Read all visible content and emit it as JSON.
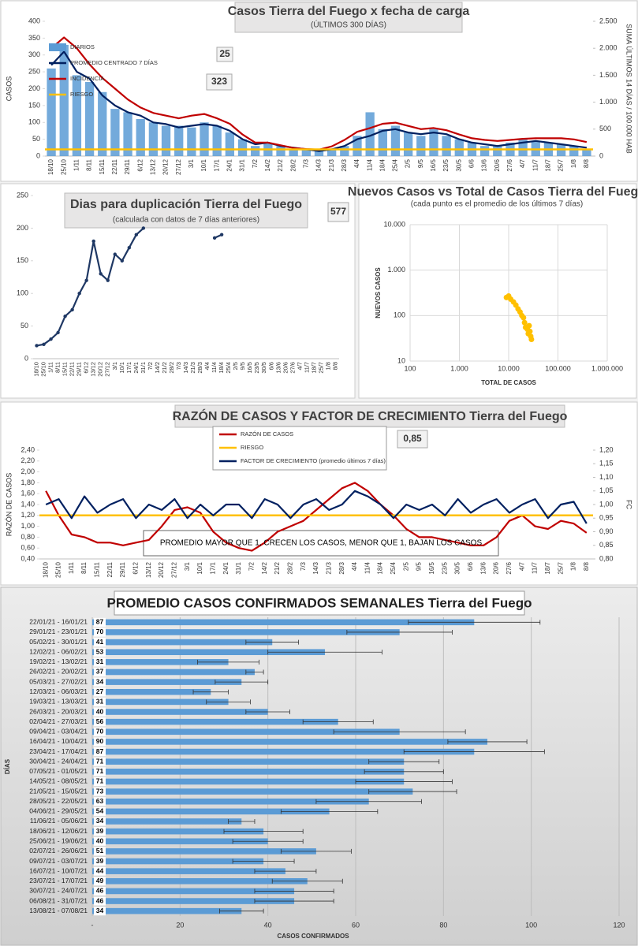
{
  "chart_data": [
    {
      "type": "bar_line",
      "title": "Casos Tierra del Fuego x fecha de carga",
      "subtitle": "(ÚLTIMOS 300 DÍAS)",
      "ylabel": "CASOS",
      "y2label": "SUMA ÚLTIMOS 14 DÍAS / 100.000 HAB",
      "legend": "upper left",
      "boxes": [
        "25",
        "323"
      ],
      "categories": [
        "18/10",
        "25/10",
        "1/11",
        "8/11",
        "15/11",
        "22/11",
        "29/11",
        "6/12",
        "13/12",
        "20/12",
        "27/12",
        "3/1",
        "10/1",
        "17/1",
        "24/1",
        "31/1",
        "7/2",
        "14/2",
        "21/2",
        "28/2",
        "7/3",
        "14/3",
        "21/3",
        "28/3",
        "4/4",
        "11/4",
        "18/4",
        "25/4",
        "2/5",
        "9/5",
        "16/5",
        "23/5",
        "30/5",
        "6/6",
        "13/6",
        "20/6",
        "27/6",
        "4/7",
        "11/7",
        "18/7",
        "25/7",
        "1/8",
        "8/8"
      ],
      "series": [
        {
          "name": "DIARIOS",
          "kind": "bar",
          "color": "#5b9bd5",
          "values": [
            260,
            330,
            240,
            220,
            190,
            140,
            130,
            110,
            100,
            90,
            90,
            85,
            100,
            90,
            70,
            50,
            30,
            40,
            30,
            20,
            20,
            15,
            20,
            30,
            60,
            130,
            80,
            90,
            70,
            60,
            80,
            60,
            50,
            40,
            30,
            30,
            40,
            50,
            45,
            40,
            35,
            30,
            20
          ]
        },
        {
          "name": "PROMEDIO CENTRADO 7 DÍAS",
          "kind": "line",
          "color": "#002060",
          "values": [
            270,
            310,
            250,
            230,
            180,
            150,
            130,
            120,
            100,
            95,
            85,
            90,
            95,
            90,
            75,
            50,
            35,
            40,
            30,
            25,
            20,
            15,
            20,
            30,
            50,
            60,
            75,
            80,
            70,
            65,
            70,
            65,
            50,
            40,
            35,
            30,
            35,
            40,
            45,
            40,
            35,
            30,
            25
          ]
        },
        {
          "name": "INCIDENCIA",
          "kind": "line",
          "axis": "y2",
          "color": "#c00000",
          "values": [
            2000,
            2200,
            2000,
            1700,
            1450,
            1250,
            1050,
            900,
            800,
            750,
            700,
            750,
            780,
            700,
            600,
            400,
            250,
            250,
            200,
            150,
            130,
            120,
            180,
            300,
            450,
            520,
            600,
            620,
            560,
            500,
            520,
            480,
            400,
            330,
            300,
            280,
            300,
            320,
            330,
            330,
            330,
            310,
            260
          ]
        },
        {
          "name": "RIESGO",
          "color": "#ffc000",
          "value": 20
        }
      ],
      "ylim": [
        0,
        400
      ],
      "yticks": [
        0,
        50,
        100,
        150,
        200,
        250,
        300,
        350,
        400
      ],
      "y2lim": [
        0,
        2500
      ],
      "y2ticks": [
        0,
        500,
        {
          "value": 1000,
          "label": "1.000"
        },
        {
          "value": 1500,
          "label": "1.500"
        },
        {
          "value": 2000,
          "label": "2.000"
        },
        {
          "value": 2500,
          "label": "2.500"
        }
      ],
      "grid": false
    },
    {
      "type": "line",
      "title": "Dias para duplicación Tierra del Fuego",
      "subtitle": "(calculada con datos de 7 días anteriores)",
      "boxes": [
        "577"
      ],
      "categories": [
        "18/10",
        "25/10",
        "1/11",
        "8/11",
        "15/11",
        "22/11",
        "29/11",
        "6/12",
        "13/12",
        "20/12",
        "27/12",
        "3/1",
        "10/1",
        "17/1",
        "24/1",
        "31/1",
        "7/2",
        "14/2",
        "21/2",
        "28/2",
        "7/3",
        "14/3",
        "21/3",
        "28/3",
        "4/4",
        "11/4",
        "18/4",
        "25/4",
        "2/5",
        "9/5",
        "16/5",
        "23/5",
        "30/5",
        "6/6",
        "13/6",
        "20/6",
        "27/6",
        "4/7",
        "11/7",
        "18/7",
        "25/7",
        "1/8",
        "8/8"
      ],
      "series": [
        {
          "color": "#1f3864",
          "markers": true,
          "values": [
            20,
            22,
            30,
            40,
            65,
            75,
            100,
            120,
            180,
            130,
            120,
            160,
            150,
            170,
            190,
            200,
            null,
            null,
            null,
            null,
            null,
            null,
            null,
            null,
            null,
            185,
            190,
            null,
            null,
            null,
            null,
            null,
            null,
            null,
            null,
            null,
            null,
            null,
            null,
            null,
            null,
            null,
            null
          ]
        }
      ],
      "ylim": [
        0,
        250
      ],
      "yticks": [
        0,
        50,
        100,
        150,
        200,
        250
      ],
      "grid": false
    },
    {
      "type": "scatter",
      "title": "Nuevos Casos vs Total de Casos Tierra del Fuego",
      "subtitle": "(cada punto es el promedio de los últimos 7 días)",
      "xlabel": "TOTAL DE CASOS",
      "ylabel": "NUEVOS CASOS",
      "xscale": "log",
      "yscale": "log",
      "color": "#ffc000",
      "x": [
        9000,
        10000,
        11000,
        12500,
        14000,
        15500,
        17000,
        18500,
        20000,
        21000,
        22000,
        24000,
        25000,
        26000,
        27000,
        28000,
        29000
      ],
      "values": [
        250,
        270,
        230,
        200,
        170,
        140,
        120,
        100,
        90,
        70,
        55,
        50,
        40,
        60,
        45,
        35,
        30
      ],
      "xlim": [
        100,
        1000000
      ],
      "xticks": [
        100,
        {
          "value": 1000,
          "label": "1.000"
        },
        {
          "value": 10000,
          "label": "10.000"
        },
        {
          "value": 100000,
          "label": "100.000"
        },
        {
          "value": 1000000,
          "label": "1.000.000"
        }
      ],
      "ylim": [
        10,
        10000
      ],
      "yticks": [
        10,
        100,
        {
          "value": 1000,
          "label": "1.000"
        },
        {
          "value": 10000,
          "label": "10.000"
        }
      ],
      "grid": true
    },
    {
      "type": "line",
      "title": "RAZÓN DE CASOS Y FACTOR DE CRECIMIENTO Tierra del Fuego",
      "ylabel": "RAZÓN DE CASOS",
      "y2label": "FC",
      "legend": "upper center",
      "boxes": [
        "0,85"
      ],
      "annotation": "PROMEDIO MAYOR QUE 1, CRECEN LOS CASOS, MENOR QUE 1, BAJAN LOS CASOS",
      "categories": [
        "18/10",
        "25/10",
        "1/11",
        "8/11",
        "15/11",
        "22/11",
        "29/11",
        "6/12",
        "13/12",
        "20/12",
        "27/12",
        "3/1",
        "10/1",
        "17/1",
        "24/1",
        "31/1",
        "7/2",
        "14/2",
        "21/2",
        "28/2",
        "7/3",
        "14/3",
        "21/3",
        "28/3",
        "4/4",
        "11/4",
        "18/4",
        "25/4",
        "2/5",
        "9/5",
        "16/5",
        "23/5",
        "30/5",
        "6/6",
        "13/6",
        "20/6",
        "27/6",
        "4/7",
        "11/7",
        "18/7",
        "25/7",
        "1/8",
        "8/8"
      ],
      "series": [
        {
          "name": "RAZÓN DE CASOS",
          "color": "#c00000",
          "values": [
            1.65,
            1.2,
            0.85,
            0.8,
            0.7,
            0.7,
            0.65,
            0.7,
            0.75,
            1.0,
            1.3,
            1.35,
            1.25,
            0.9,
            0.7,
            0.6,
            0.55,
            0.7,
            0.9,
            1.0,
            1.1,
            1.3,
            1.5,
            1.7,
            1.8,
            1.65,
            1.4,
            1.2,
            0.95,
            0.8,
            0.8,
            0.75,
            0.7,
            0.65,
            0.65,
            0.8,
            1.1,
            1.2,
            1.0,
            0.95,
            1.1,
            1.05,
            0.88
          ]
        },
        {
          "name": "RIESGO",
          "color": "#ffc000",
          "value": 1.2
        },
        {
          "name": "FACTOR DE CRECIMIENTO (promedio últimos 7 días)",
          "axis": "y2",
          "color": "#002060",
          "values": [
            1.0,
            1.02,
            0.95,
            1.03,
            0.97,
            1.0,
            1.02,
            0.95,
            1.0,
            0.98,
            1.02,
            0.95,
            1.0,
            0.96,
            1.0,
            1.0,
            0.95,
            1.02,
            1.0,
            0.95,
            1.0,
            1.02,
            0.98,
            1.0,
            1.05,
            1.03,
            1.0,
            0.95,
            1.0,
            0.98,
            1.0,
            0.96,
            1.02,
            0.97,
            1.0,
            1.02,
            0.97,
            1.0,
            1.02,
            0.95,
            1.0,
            1.01,
            0.93
          ]
        }
      ],
      "ylim": [
        0.4,
        2.4
      ],
      "yticks": [
        {
          "value": 0.4,
          "label": "0,40"
        },
        {
          "value": 0.6,
          "label": "0,60"
        },
        {
          "value": 0.8,
          "label": "0,80"
        },
        {
          "value": 1.0,
          "label": "1,00"
        },
        {
          "value": 1.2,
          "label": "1,20"
        },
        {
          "value": 1.4,
          "label": "1,40"
        },
        {
          "value": 1.6,
          "label": "1,60"
        },
        {
          "value": 1.8,
          "label": "1,80"
        },
        {
          "value": 2.0,
          "label": "2,00"
        },
        {
          "value": 2.2,
          "label": "2,20"
        },
        {
          "value": 2.4,
          "label": "2,40"
        }
      ],
      "y2lim": [
        0.8,
        1.2
      ],
      "y2ticks": [
        {
          "value": 0.8,
          "label": "0,80"
        },
        {
          "value": 0.85,
          "label": "0,85"
        },
        {
          "value": 0.9,
          "label": "0,90"
        },
        {
          "value": 0.95,
          "label": "0,95"
        },
        {
          "value": 1.0,
          "label": "1,00"
        },
        {
          "value": 1.05,
          "label": "1,05"
        },
        {
          "value": 1.1,
          "label": "1,10"
        },
        {
          "value": 1.15,
          "label": "1,15"
        },
        {
          "value": 1.2,
          "label": "1,20"
        }
      ],
      "grid": false
    },
    {
      "type": "hbar",
      "title": "PROMEDIO CASOS CONFIRMADOS SEMANALES Tierra del Fuego",
      "xlabel": "CASOS CONFIRMADOS",
      "ylabel": "DÍAS",
      "color": "#5b9bd5",
      "categories": [
        "22/01/21 - 16/01/21",
        "29/01/21 - 23/01/21",
        "05/02/21 - 30/01/21",
        "12/02/21 - 06/02/21",
        "19/02/21 - 13/02/21",
        "26/02/21 - 20/02/21",
        "05/03/21 - 27/02/21",
        "12/03/21 - 06/03/21",
        "19/03/21 - 13/03/21",
        "26/03/21 - 20/03/21",
        "02/04/21 - 27/03/21",
        "09/04/21 - 03/04/21",
        "16/04/21 - 10/04/21",
        "23/04/21 - 17/04/21",
        "30/04/21 - 24/04/21",
        "07/05/21 - 01/05/21",
        "14/05/21 - 08/05/21",
        "21/05/21 - 15/05/21",
        "28/05/21 - 22/05/21",
        "04/06/21 - 29/05/21",
        "11/06/21 - 05/06/21",
        "18/06/21 - 12/06/21",
        "25/06/21 - 19/06/21",
        "02/07/21 - 26/06/21",
        "09/07/21 - 03/07/21",
        "16/07/21 - 10/07/21",
        "23/07/21 - 17/07/21",
        "30/07/21 - 24/07/21",
        "06/08/21 - 31/07/21",
        "13/08/21 - 07/08/21"
      ],
      "values": [
        87,
        70,
        41,
        53,
        31,
        37,
        34,
        27,
        31,
        40,
        56,
        70,
        90,
        87,
        71,
        71,
        71,
        73,
        63,
        54,
        34,
        39,
        40,
        51,
        39,
        44,
        49,
        46,
        46,
        34
      ],
      "errors": [
        15,
        12,
        6,
        13,
        7,
        2,
        6,
        4,
        5,
        5,
        8,
        15,
        9,
        16,
        8,
        9,
        11,
        10,
        12,
        11,
        3,
        9,
        8,
        8,
        7,
        7,
        8,
        9,
        9,
        5
      ],
      "xlim": [
        0,
        120
      ],
      "xticks": [
        {
          "value": 0,
          "label": "-"
        },
        20,
        40,
        60,
        80,
        100,
        120
      ],
      "grid": true
    }
  ]
}
